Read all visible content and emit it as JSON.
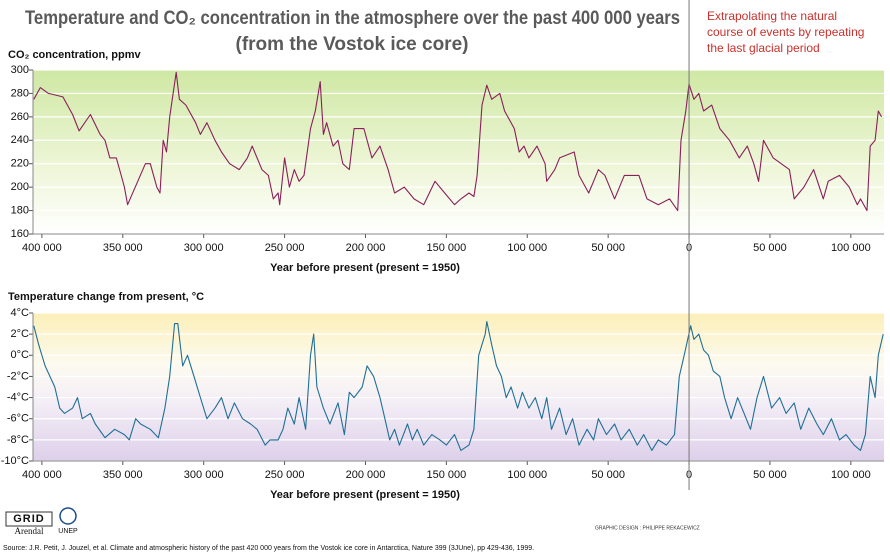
{
  "header": {
    "title": "Temperature and CO₂ concentration in the atmosphere over the past 400 000 years",
    "subtitle": "(from the Vostok ice core)"
  },
  "annotation": [
    "Extrapolating the natural",
    "course of events by repeating",
    "the last glacial period"
  ],
  "footer": {
    "logo_grid": "GRID",
    "logo_arendal": "Arendal",
    "logo_unep": "UNEP",
    "credit": "GRAPHIC DESIGN : PHILIPPE REKACEWICZ",
    "source": "Source: J.R. Petit, J. Jouzel, et al. Climate and atmospheric history of the past 420 000 years from the Vostok ice core in Antarctica, Nature 399 (3JUne), pp 429-436, 1999."
  },
  "chart_data": [
    {
      "type": "line",
      "y_label": "CO₂ concentration, ppmv",
      "x_label": "Year before present (present = 1950)",
      "color": "#8a1f5c",
      "grid": true,
      "xlim": [
        405500,
        -120500
      ],
      "ylim": [
        160,
        300
      ],
      "xticks": [
        {
          "value": 400000,
          "label": "400 000"
        },
        {
          "value": 350000,
          "label": "350 000"
        },
        {
          "value": 300000,
          "label": "300 000"
        },
        {
          "value": 250000,
          "label": "250 000"
        },
        {
          "value": 200000,
          "label": "200 000"
        },
        {
          "value": 150000,
          "label": "150 000"
        },
        {
          "value": 100000,
          "label": "100 000"
        },
        {
          "value": 50000,
          "label": "50 000"
        },
        0,
        {
          "value": -50000,
          "label": "50 000"
        },
        {
          "value": -100000,
          "label": "100 000"
        }
      ],
      "yticks": [
        160,
        180,
        200,
        220,
        240,
        260,
        280,
        300
      ],
      "x": [
        405000,
        401000,
        396000,
        387000,
        381000,
        377000,
        370000,
        364000,
        361000,
        358000,
        354000,
        351000,
        349000,
        347000,
        336000,
        333000,
        329000,
        327000,
        325000,
        323000,
        321000,
        317000,
        315000,
        311000,
        305000,
        302000,
        298000,
        293000,
        289000,
        284000,
        278000,
        273000,
        270000,
        264000,
        260000,
        257000,
        254000,
        253000,
        250000,
        247000,
        244000,
        241000,
        238000,
        234000,
        231000,
        228000,
        226000,
        224000,
        220000,
        217000,
        214000,
        210000,
        207000,
        201000,
        196000,
        191000,
        186000,
        182000,
        176000,
        170000,
        164000,
        157000,
        151000,
        145000,
        141000,
        136000,
        133000,
        131000,
        128000,
        125000,
        122000,
        117000,
        114000,
        108000,
        105000,
        102000,
        99000,
        94000,
        89000,
        88000,
        83000,
        80000,
        71000,
        68000,
        62000,
        59000,
        56000,
        52000,
        46000,
        40000,
        31000,
        26000,
        19000,
        12000,
        7000,
        5000,
        2000,
        0,
        -3000,
        -6000,
        -9000,
        -14000,
        -19000,
        -25000,
        -31000,
        -36000,
        -40000,
        -43000,
        -46000,
        -52000,
        -62000,
        -65000,
        -71000,
        -77000,
        -83000,
        -86000,
        -93000,
        -99000,
        -104000,
        -106000,
        -110000,
        -112000,
        -115000,
        -117000,
        -119000
      ],
      "values": [
        275,
        285,
        280,
        277,
        262,
        248,
        262,
        245,
        240,
        225,
        225,
        210,
        200,
        185,
        220,
        220,
        200,
        195,
        240,
        230,
        260,
        298,
        275,
        270,
        255,
        245,
        255,
        240,
        230,
        220,
        215,
        225,
        235,
        215,
        210,
        190,
        195,
        185,
        225,
        200,
        215,
        205,
        210,
        250,
        265,
        290,
        245,
        255,
        235,
        240,
        220,
        215,
        250,
        250,
        225,
        235,
        215,
        195,
        200,
        190,
        185,
        205,
        195,
        185,
        190,
        195,
        192,
        210,
        270,
        287,
        275,
        280,
        265,
        250,
        230,
        235,
        225,
        235,
        220,
        205,
        215,
        225,
        230,
        210,
        195,
        205,
        215,
        210,
        190,
        210,
        210,
        190,
        185,
        190,
        180,
        240,
        265,
        288,
        275,
        280,
        265,
        270,
        250,
        240,
        225,
        235,
        220,
        205,
        240,
        225,
        215,
        190,
        200,
        215,
        190,
        205,
        210,
        200,
        185,
        190,
        180,
        235,
        240,
        265,
        260
      ]
    },
    {
      "type": "line",
      "y_label": "Temperature change from present, °C",
      "x_label": "Year before present (present = 1950)",
      "color": "#1f6f95",
      "grid": true,
      "xlim": [
        405500,
        -120500
      ],
      "ylim": [
        -10,
        4
      ],
      "xticks": [
        {
          "value": 400000,
          "label": "400 000"
        },
        {
          "value": 350000,
          "label": "350 000"
        },
        {
          "value": 300000,
          "label": "300 000"
        },
        {
          "value": 250000,
          "label": "250 000"
        },
        {
          "value": 200000,
          "label": "200 000"
        },
        {
          "value": 150000,
          "label": "150 000"
        },
        {
          "value": 100000,
          "label": "100 000"
        },
        {
          "value": 50000,
          "label": "50 000"
        },
        0,
        {
          "value": -50000,
          "label": "50 000"
        },
        {
          "value": -100000,
          "label": "100 000"
        }
      ],
      "yticks": [
        {
          "value": 4,
          "label": "4°C"
        },
        {
          "value": 2,
          "label": "2°C"
        },
        {
          "value": 0,
          "label": "0°C"
        },
        {
          "value": -2,
          "label": "-2°C"
        },
        {
          "value": -4,
          "label": "-4°C"
        },
        {
          "value": -6,
          "label": "-6°C"
        },
        {
          "value": -8,
          "label": "-8°C"
        },
        {
          "value": -10,
          "label": "-10°C"
        }
      ],
      "x": [
        405000,
        402000,
        398000,
        392000,
        389000,
        386000,
        381000,
        378000,
        375000,
        370000,
        367000,
        361000,
        355000,
        349000,
        346000,
        342000,
        339000,
        333000,
        328000,
        324000,
        321000,
        318000,
        316000,
        313000,
        310000,
        305000,
        302000,
        298000,
        293000,
        289000,
        285000,
        281000,
        276000,
        271000,
        267000,
        262000,
        259000,
        254000,
        251000,
        248000,
        244000,
        241000,
        237000,
        234000,
        232000,
        230000,
        226000,
        222000,
        217000,
        213000,
        210000,
        207000,
        202000,
        199000,
        195000,
        191000,
        188000,
        185000,
        182000,
        179000,
        174000,
        171000,
        168000,
        164000,
        159000,
        154000,
        150000,
        145000,
        141000,
        136000,
        133000,
        130000,
        126000,
        125000,
        122000,
        119000,
        116000,
        113000,
        110000,
        106000,
        103000,
        99000,
        95000,
        91000,
        88000,
        85000,
        80000,
        76000,
        72000,
        68000,
        63000,
        59000,
        56000,
        51000,
        46000,
        42000,
        37000,
        32000,
        28000,
        23000,
        19000,
        14000,
        9000,
        6000,
        3000,
        -1000,
        -3000,
        -6000,
        -9000,
        -12000,
        -15000,
        -19000,
        -22000,
        -26000,
        -30000,
        -34000,
        -38000,
        -42000,
        -46000,
        -51000,
        -56000,
        -60000,
        -65000,
        -69000,
        -74000,
        -79000,
        -83000,
        -88000,
        -93000,
        -97000,
        -102000,
        -106000,
        -109000,
        -112000,
        -115000,
        -117000,
        -120000
      ],
      "values": [
        2.8,
        1,
        -1,
        -3,
        -5,
        -5.5,
        -5,
        -4,
        -6,
        -5.5,
        -6.5,
        -7.8,
        -7,
        -7.5,
        -8,
        -6,
        -6.5,
        -7,
        -7.8,
        -5,
        -2,
        3,
        3,
        -1,
        0,
        -2.5,
        -4,
        -6,
        -5,
        -4,
        -6,
        -4.5,
        -6,
        -6.5,
        -7,
        -8.5,
        -8,
        -8,
        -7,
        -5,
        -6.5,
        -4,
        -7,
        0,
        2,
        -3,
        -5,
        -6.5,
        -4.5,
        -7.5,
        -3.5,
        -4,
        -3,
        -1,
        -2,
        -4,
        -6,
        -8,
        -7,
        -8.5,
        -6.5,
        -8,
        -7,
        -8.5,
        -7.5,
        -8,
        -8.5,
        -7.5,
        -9,
        -8.5,
        -7,
        0,
        2,
        3.2,
        1,
        -1,
        -2,
        -4,
        -3,
        -5,
        -3.5,
        -5,
        -4,
        -6,
        -4,
        -7,
        -5,
        -7.5,
        -6,
        -8.5,
        -7,
        -8,
        -6,
        -7.5,
        -6.5,
        -8,
        -7,
        -8.5,
        -7.5,
        -9,
        -8,
        -8.5,
        -7.5,
        -2,
        0,
        2.8,
        1.5,
        2,
        0.5,
        0,
        -1.5,
        -2,
        -4,
        -6,
        -4,
        -5.5,
        -7,
        -4,
        -2,
        -5,
        -4,
        -5.5,
        -4.5,
        -7,
        -5,
        -6.5,
        -7.5,
        -6,
        -8,
        -7.5,
        -8.5,
        -9,
        -7.5,
        -2,
        -4,
        0,
        2
      ]
    }
  ]
}
